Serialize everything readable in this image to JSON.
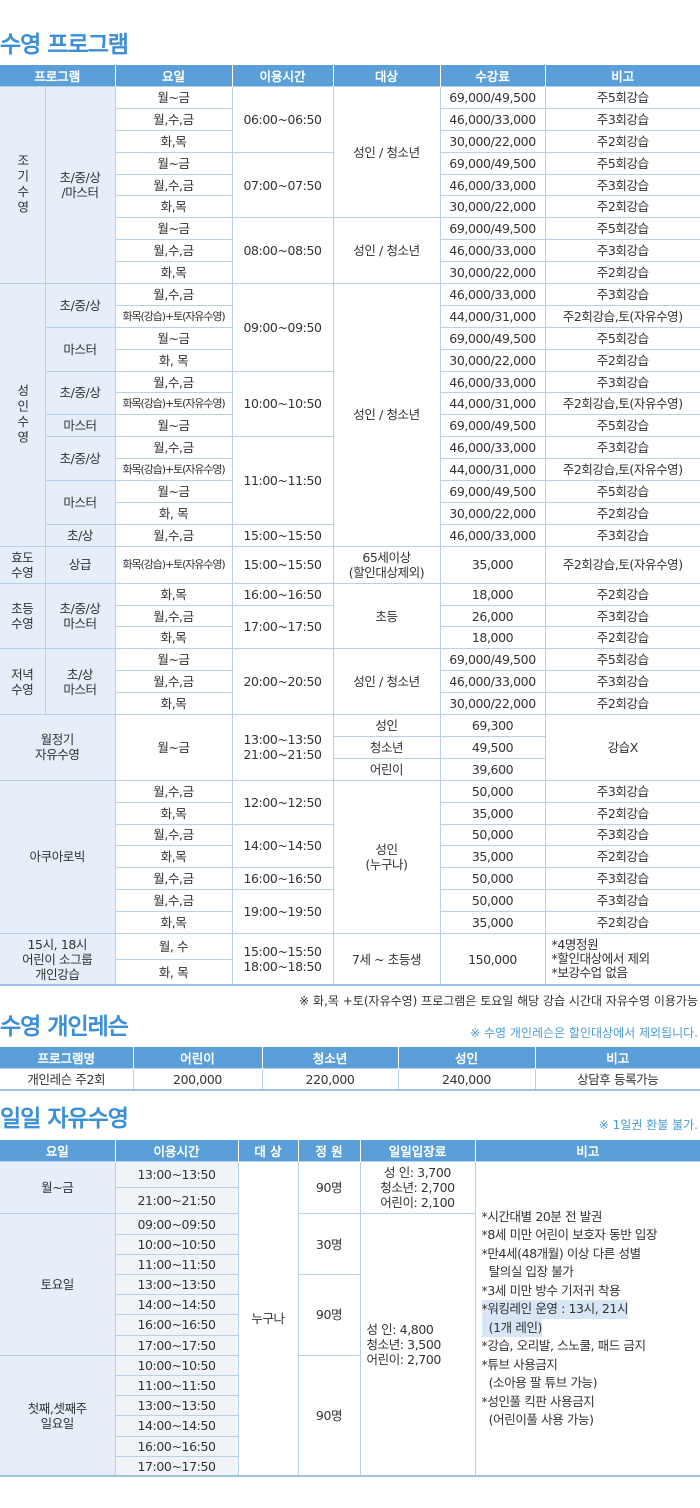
{
  "program": {
    "title": "수영 프로그램",
    "headers": [
      "프로그램",
      "요일",
      "이용시간",
      "대상",
      "수강료",
      "비고"
    ],
    "rows": [
      [
        "조기수영",
        "초/중/상\n/마스터",
        "월~금",
        "06:00~06:50",
        "성인 / 청소년",
        "69,000/49,500",
        "주5회강습"
      ],
      [
        null,
        null,
        "월,수,금",
        null,
        null,
        "46,000/33,000",
        "주3회강습"
      ],
      [
        null,
        null,
        "화,목",
        null,
        null,
        "30,000/22,000",
        "주2회강습"
      ],
      [
        null,
        null,
        "월~금",
        "07:00~07:50",
        null,
        "69,000/49,500",
        "주5회강습"
      ],
      [
        null,
        null,
        "월,수,금",
        null,
        null,
        "46,000/33,000",
        "주3회강습"
      ],
      [
        null,
        null,
        "화,목",
        null,
        null,
        "30,000/22,000",
        "주2회강습"
      ],
      [
        null,
        null,
        "월~금",
        "08:00~08:50",
        "성인 / 청소년",
        "69,000/49,500",
        "주5회강습"
      ],
      [
        null,
        null,
        "월,수,금",
        null,
        null,
        "46,000/33,000",
        "주3회강습"
      ],
      [
        null,
        null,
        "화,목",
        null,
        null,
        "30,000/22,000",
        "주2회강습"
      ],
      [
        "성인수영",
        "초/중/상",
        "월,수,금",
        "09:00~09:50",
        "성인 / 청소년",
        "46,000/33,000",
        "주3회강습"
      ],
      [
        null,
        null,
        "화목(강습)+토(자유수영)",
        null,
        null,
        "44,000/31,000",
        "주2회강습,토(자유수영)"
      ],
      [
        null,
        "마스터",
        "월~금",
        null,
        null,
        "69,000/49,500",
        "주5회강습"
      ],
      [
        null,
        null,
        "화, 목",
        null,
        null,
        "30,000/22,000",
        "주2회강습"
      ],
      [
        null,
        "초/중/상",
        "월,수,금",
        "10:00~10:50",
        null,
        "46,000/33,000",
        "주3회강습"
      ],
      [
        null,
        null,
        "화목(강습)+토(자유수영)",
        null,
        null,
        "44,000/31,000",
        "주2회강습,토(자유수영)"
      ],
      [
        null,
        "마스터",
        "월~금",
        null,
        null,
        "69,000/49,500",
        "주5회강습"
      ],
      [
        null,
        "초/중/상",
        "월,수,금",
        "11:00~11:50",
        null,
        "46,000/33,000",
        "주3회강습"
      ],
      [
        null,
        null,
        "화목(강습)+토(자유수영)",
        null,
        null,
        "44,000/31,000",
        "주2회강습,토(자유수영)"
      ],
      [
        null,
        "마스터",
        "월~금",
        null,
        null,
        "69,000/49,500",
        "주5회강습"
      ],
      [
        null,
        null,
        "화, 목",
        null,
        null,
        "30,000/22,000",
        "주2회강습"
      ],
      [
        null,
        "초/상",
        "월,수,금",
        "15:00~15:50",
        null,
        "46,000/33,000",
        "주3회강습"
      ],
      [
        "효도\n수영",
        "상급",
        "화목(강습)+토(자유수영)",
        "15:00~15:50",
        "65세이상\n(할인대상제외)",
        "35,000",
        "주2회강습,토(자유수영)"
      ],
      [
        "초등\n수영",
        "초/중/상\n마스터",
        "화,목",
        "16:00~16:50",
        "초등",
        "18,000",
        "주2회강습"
      ],
      [
        null,
        null,
        "월,수,금",
        "17:00~17:50",
        null,
        "26,000",
        "주3회강습"
      ],
      [
        null,
        null,
        "화,목",
        null,
        null,
        "18,000",
        "주2회강습"
      ],
      [
        "저녁\n수영",
        "초/상\n마스터",
        "월~금",
        "20:00~20:50",
        "성인 / 청소년",
        "69,000/49,500",
        "주5회강습"
      ],
      [
        null,
        null,
        "월,수,금",
        null,
        null,
        "46,000/33,000",
        "주3회강습"
      ],
      [
        null,
        null,
        "화,목",
        null,
        null,
        "30,000/22,000",
        "주2회강습"
      ],
      [
        "월정기\n자유수영",
        "<",
        "월~금",
        "13:00~13:50\n21:00~21:50",
        "성인",
        "69,300",
        "강습X"
      ],
      [
        null,
        null,
        null,
        null,
        "청소년",
        "49,500",
        null
      ],
      [
        null,
        null,
        null,
        null,
        "어린이",
        "39,600",
        null
      ],
      [
        "아쿠아로빅",
        "<",
        "월,수,금",
        "12:00~12:50",
        "성인\n(누구나)",
        "50,000",
        "주3회강습"
      ],
      [
        null,
        null,
        "화,목",
        null,
        null,
        "35,000",
        "주2회강습"
      ],
      [
        null,
        null,
        "월,수,금",
        "14:00~14:50",
        null,
        "50,000",
        "주3회강습"
      ],
      [
        null,
        null,
        "화,목",
        null,
        null,
        "35,000",
        "주2회강습"
      ],
      [
        null,
        null,
        "월,수,금",
        "16:00~16:50",
        null,
        "50,000",
        "주3회강습"
      ],
      [
        null,
        null,
        "월,수,금",
        "19:00~19:50",
        null,
        "50,000",
        "주3회강습"
      ],
      [
        null,
        null,
        "화,목",
        null,
        null,
        "35,000",
        "주2회강습"
      ],
      [
        "15시, 18시\n어린이 소그룹\n개인강습",
        "<",
        "월, 수",
        "15:00~15:50\n18:00~18:50",
        "7세 ~ 초등생",
        "150,000",
        "*4명정원\n*할인대상에서 제외\n*보강수업 없음"
      ],
      [
        null,
        null,
        "화, 목",
        null,
        null,
        null,
        null
      ]
    ],
    "footnote": "※ 화,목 +토(자유수영) 프로그램은 토요일 해당 강습 시간대 자유수영 이용가능"
  },
  "lesson": {
    "title": "수영 개인레슨",
    "note": "※ 수영 개인레슨은 할인대상에서 제외됩니다.",
    "headers": [
      "프로그램명",
      "어린이",
      "청소년",
      "성인",
      "비고"
    ],
    "row": [
      "개인레슨 주2회",
      "200,000",
      "220,000",
      "240,000",
      "상담후 등록가능"
    ]
  },
  "daily": {
    "title": "일일 자유수영",
    "note": "※ 1일권 환불 불가.",
    "headers": [
      "요일",
      "이용시간",
      "대 상",
      "정 원",
      "일일입장료",
      "비고"
    ],
    "rows": [
      [
        "월~금",
        "13:00~13:50",
        "누구나",
        "90명",
        "성  인: 3,700\n청소년: 2,700\n어린이: 2,100",
        ""
      ],
      [
        null,
        "21:00~21:50",
        null,
        null,
        null,
        null
      ],
      [
        "토요일",
        "09:00~09:50",
        null,
        "30명",
        "성  인: 4,800\n청소년: 3,500\n어린이: 2,700",
        null
      ],
      [
        null,
        "10:00~10:50",
        null,
        null,
        null,
        null
      ],
      [
        null,
        "11:00~11:50",
        null,
        null,
        null,
        null
      ],
      [
        null,
        "13:00~13:50",
        null,
        "90명",
        null,
        null
      ],
      [
        null,
        "14:00~14:50",
        null,
        null,
        null,
        null
      ],
      [
        null,
        "16:00~16:50",
        null,
        null,
        null,
        null
      ],
      [
        null,
        "17:00~17:50",
        null,
        null,
        null,
        null
      ],
      [
        "첫째,셋째주\n일요일",
        "10:00~10:50",
        null,
        "90명",
        null,
        null
      ],
      [
        null,
        "11:00~11:50",
        null,
        null,
        null,
        null
      ],
      [
        null,
        "13:00~13:50",
        null,
        null,
        null,
        null
      ],
      [
        null,
        "14:00~14:50",
        null,
        null,
        null,
        null
      ],
      [
        null,
        "16:00~16:50",
        null,
        null,
        null,
        null
      ],
      [
        null,
        "17:00~17:50",
        null,
        null,
        null,
        null
      ]
    ],
    "notes": [
      {
        "text": "*시간대별 20분 전 발권"
      },
      {
        "text": "*8세 미만 어린이 보호자 동반 입장"
      },
      {
        "text": "*만4세(48개월) 이상 다른 성별\n  탈의실 입장 불가"
      },
      {
        "text": "*3세 미만 방수 기저귀 착용"
      },
      {
        "text": "*워킹레인 운영 : 13시, 21시",
        "highlight": true
      },
      {
        "text": "  (1개 레인)",
        "highlight": true
      },
      {
        "text": "*강습, 오리발, 스노쿨, 패드 금지"
      },
      {
        "text": "*튜브 사용금지\n  (소아용 팔 튜브 가능)"
      },
      {
        "text": "*성인풀 킥판 사용금지\n  (어린이풀 사용 가능)"
      }
    ]
  },
  "colors": {
    "accent": "#3b8fd8",
    "header": "#5b9fd8",
    "group_bg": "#e5eef9",
    "border": "#b9d0ea"
  }
}
